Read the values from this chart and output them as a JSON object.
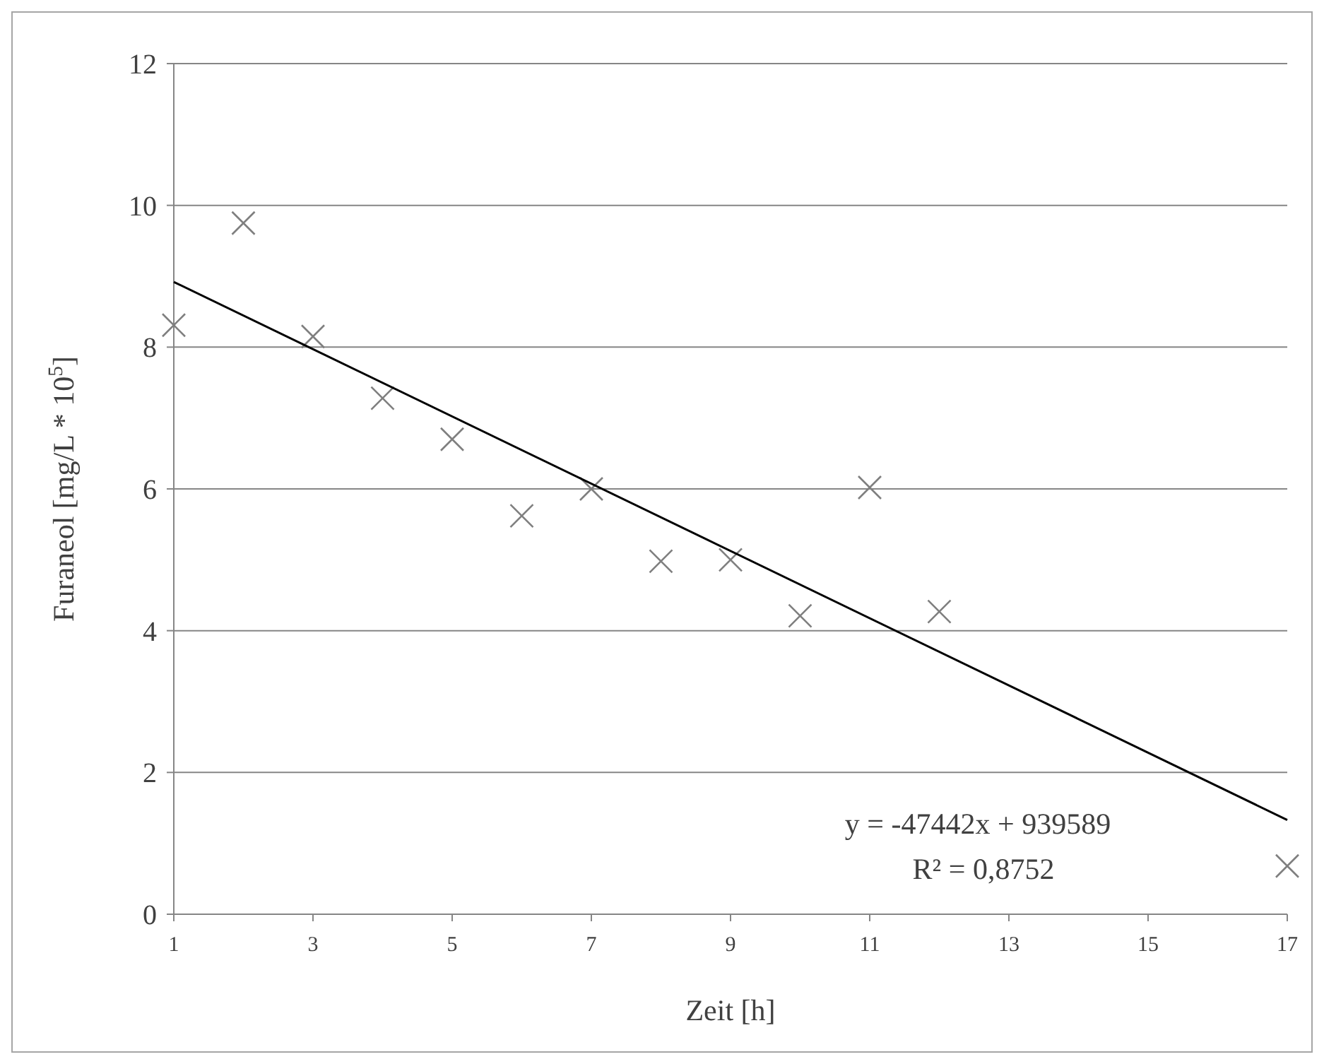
{
  "chart_data": {
    "type": "scatter",
    "xlabel": "Zeit [h]",
    "ylabel": "Furaneol [mg/L * 10$^{5}$]",
    "x": [
      1,
      2,
      3,
      4,
      5,
      6,
      7,
      8,
      9,
      10,
      11,
      12,
      17
    ],
    "series": [
      {
        "color": "#7f7f7f",
        "marker": "cross",
        "values": [
          8.31,
          9.75,
          8.15,
          7.28,
          6.7,
          5.62,
          6.0,
          4.98,
          5.0,
          4.21,
          6.02,
          4.27,
          0.68
        ]
      },
      {
        "type": "line",
        "color": "#000000",
        "x": [
          1,
          17
        ],
        "values": [
          8.92,
          1.33
        ]
      }
    ],
    "xlim": [
      1,
      17
    ],
    "xticks": [
      1,
      3,
      5,
      7,
      9,
      11,
      13,
      15,
      17
    ],
    "ylim": [
      0,
      12
    ],
    "yticks": [
      0,
      2,
      4,
      6,
      8,
      10,
      12
    ],
    "grid": "y",
    "annotations": [
      "y = -47442x + 939589",
      "R² = 0,8752"
    ]
  }
}
